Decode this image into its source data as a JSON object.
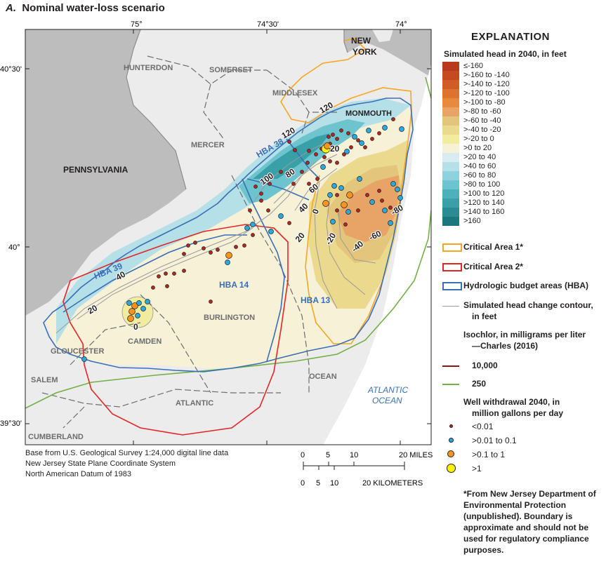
{
  "title": {
    "letter": "A.",
    "text": "Nominal water-loss scenario"
  },
  "graticule": {
    "longitude": [
      "75°",
      "74°30'",
      "74°"
    ],
    "latitude": [
      "40°30'",
      "40°",
      "39°30'"
    ]
  },
  "places": {
    "new_york": [
      "NEW",
      "YORK"
    ],
    "pennsylvania": "PENNSYLVANIA",
    "counties": [
      "HUNTERDON",
      "SOMERSET",
      "MIDDLESEX",
      "MONMOUTH",
      "MERCER",
      "BURLINGTON",
      "GLOUCESTER",
      "CAMDEN",
      "SALEM",
      "ATLANTIC",
      "OCEAN",
      "CUMBERLAND"
    ],
    "ocean": [
      "ATLANTIC",
      "OCEAN"
    ]
  },
  "hba_labels": [
    "HBA 38",
    "HBA 39",
    "HBA 14",
    "HBA 13"
  ],
  "contour_labels": [
    "120",
    "120",
    "20",
    "100",
    "80",
    "60",
    "40",
    "0",
    "20",
    "-20",
    "-40",
    "-60",
    "-80",
    "40",
    "20",
    "0"
  ],
  "legend": {
    "heading": "EXPLANATION",
    "head_title": "Simulated head in 2040, in feet",
    "head_classes": [
      {
        "label": "≤-160",
        "color": "#b8391d"
      },
      {
        "label": ">-160 to -140",
        "color": "#c54a22"
      },
      {
        "label": ">-140 to -120",
        "color": "#d25c27"
      },
      {
        "label": ">-120 to -100",
        "color": "#de722f"
      },
      {
        "label": ">-100 to -80",
        "color": "#e78a3c"
      },
      {
        "label": ">-80 to -60",
        "color": "#e8a366"
      },
      {
        "label": ">-60 to -40",
        "color": "#e3c57c"
      },
      {
        "label": ">-40 to -20",
        "color": "#ebd98e"
      },
      {
        "label": ">-20 to 0",
        "color": "#f2ec9e"
      },
      {
        "label": ">0 to 20",
        "color": "#f6f1d7"
      },
      {
        "label": ">20 to 40",
        "color": "#d7ecf1"
      },
      {
        "label": ">40 to 60",
        "color": "#b5e0e8"
      },
      {
        "label": ">60 to 80",
        "color": "#8fd1dd"
      },
      {
        "label": ">80 to 100",
        "color": "#6dc4ce"
      },
      {
        "label": ">100 to 120",
        "color": "#4eb1ba"
      },
      {
        "label": ">120 to 140",
        "color": "#3aa0a8"
      },
      {
        "label": ">140 to 160",
        "color": "#2a8b92"
      },
      {
        "label": ">160",
        "color": "#1d767c"
      }
    ],
    "lines": [
      {
        "label": "Critical Area 1*",
        "color": "#f6a623"
      },
      {
        "label": "Critical Area 2*",
        "color": "#e32526"
      },
      {
        "label": "Hydrologic budget areas (HBA)",
        "color": "#3a6fb7"
      },
      {
        "label": "Simulated head change contour,",
        "label2": "in feet",
        "color": "#9a9a9a"
      }
    ],
    "isochlor_title": "Isochlor, in milligrams per liter",
    "isochlor_sub": "—Charles (2016)",
    "isochlor": [
      {
        "label": "10,000",
        "color": "#8a1a1a"
      },
      {
        "label": "250",
        "color": "#72b043"
      }
    ],
    "well_title": "Well withdrawal 2040, in",
    "well_title2": "million gallons per day",
    "wells": [
      {
        "label": "<0.01",
        "color": "#b3261e"
      },
      {
        "label": ">0.01 to 0.1",
        "color": "#29a9e0"
      },
      {
        "label": ">0.1 to 1",
        "color": "#f7941d"
      },
      {
        "label": ">1",
        "color": "#fff200"
      }
    ]
  },
  "scale": {
    "miles_ticks": [
      "0",
      "5",
      "10",
      "20 MILES"
    ],
    "km_ticks": [
      "0",
      "5",
      "10",
      "20 KILOMETERS"
    ]
  },
  "credits": [
    "Base from U.S. Geological Survey 1:24,000 digital line data",
    "New Jersey State Plane Coordinate System",
    "North American Datum of 1983"
  ],
  "footnote": "*From New Jersey Department of Environmental Protection (unpublished). Boundary is approximate and should not be used for regulatory compliance purposes."
}
